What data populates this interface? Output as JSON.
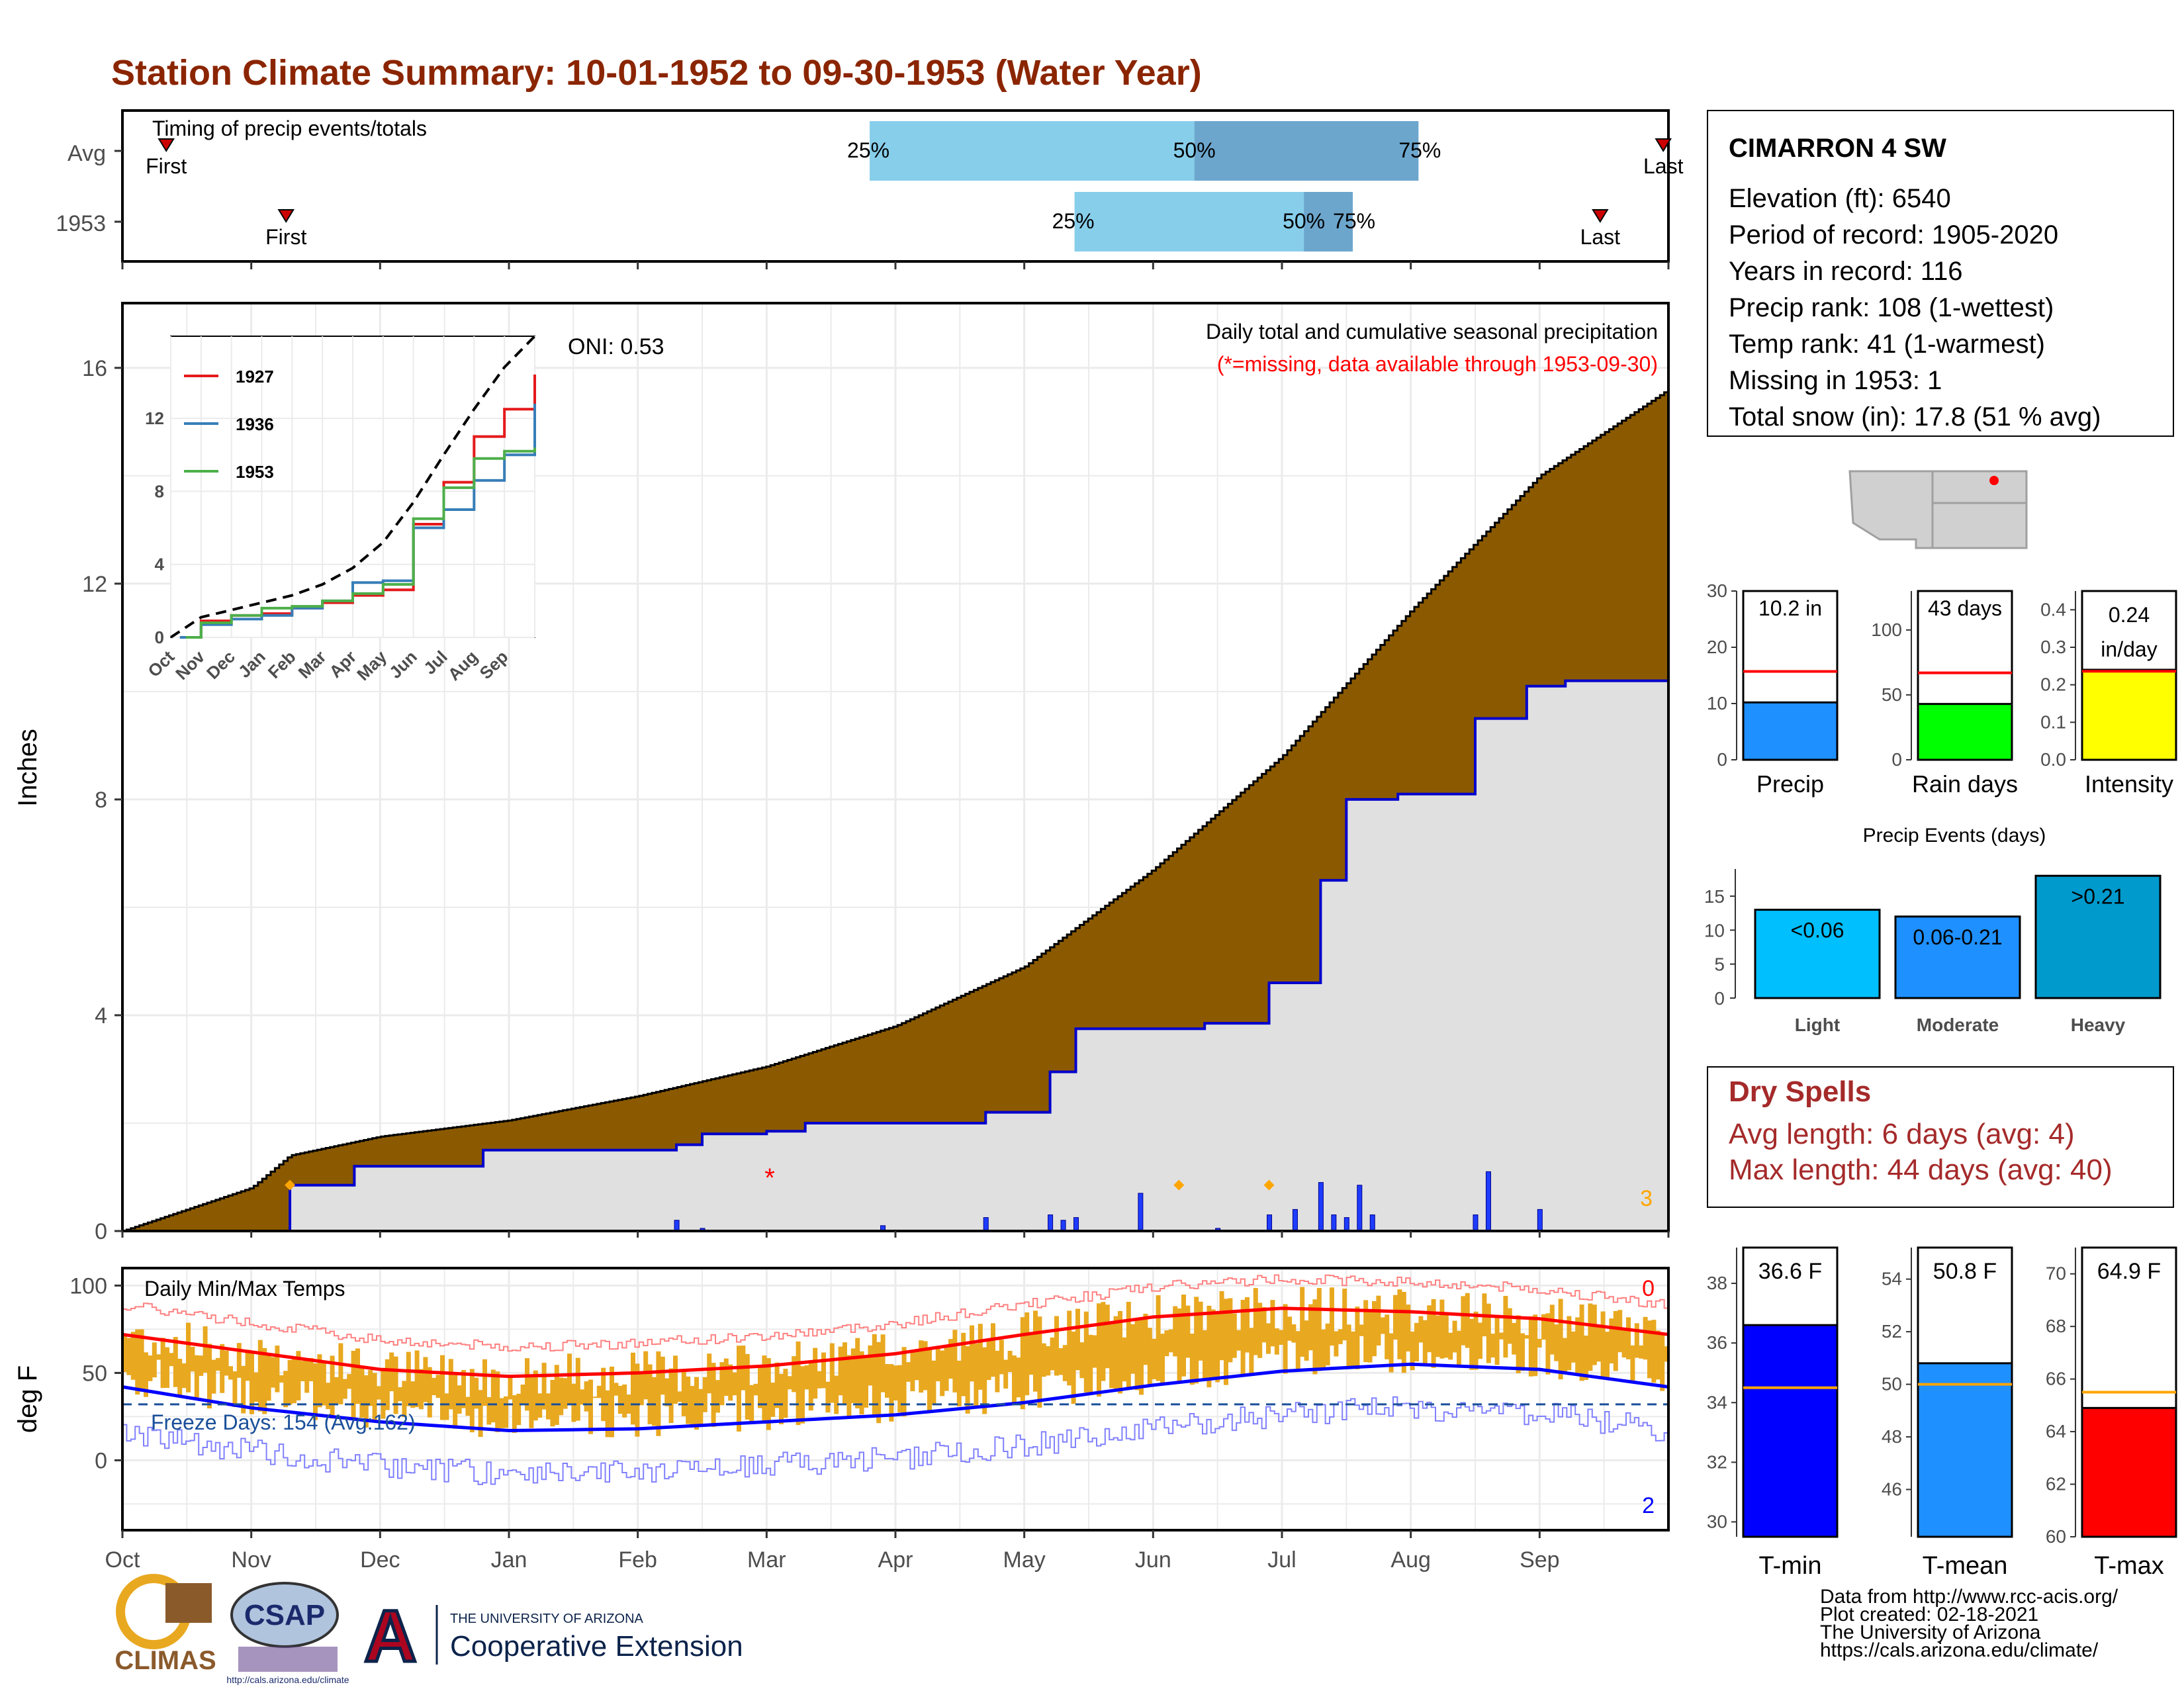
{
  "title": "Station Climate Summary: 10-01-1952 to 09-30-1953 (Water Year)",
  "colors": {
    "title": "#8B2500",
    "cumulative_fill": "#8B5A00",
    "normal_fill": "#E0E0E0",
    "obs_line": "#0000CD",
    "precip_bar": "#1E3CFF",
    "temp_bar": "#E8A820",
    "tmax_line": "#FF0000",
    "tmin_line": "#0000FF",
    "light": "#00BFFF",
    "moderate": "#1E90FF",
    "heavy": "#009ACD"
  },
  "timing": {
    "title": "Timing of precip events/totals",
    "rows": [
      "Avg",
      "1953"
    ],
    "avg": {
      "first_month": 0.34,
      "p25_month": 5.8,
      "p50_month": 8.32,
      "p75_month": 10.06,
      "last_month": 11.96,
      "first_label": "First",
      "last_label": "Last",
      "p25_label": "25%",
      "p50_label": "50%",
      "p75_label": "75%"
    },
    "y1953": {
      "first_month": 1.27,
      "p25_month": 7.39,
      "p50_month": 9.17,
      "p75_month": 9.55,
      "last_month": 11.47,
      "first_label": "First",
      "last_label": "Last",
      "p25_label": "25%",
      "p50_label": "50%",
      "p75_label": "75%"
    }
  },
  "precip_panel": {
    "ylabel": "Inches",
    "y_ticks": [
      "0",
      "4",
      "8",
      "12",
      "16"
    ],
    "heading": "Daily total and cumulative seasonal precipitation",
    "missing_note": "(*=missing, data available through 1953-09-30)",
    "oni": "ONI: 0.53",
    "corner_count": "3"
  },
  "inset": {
    "y_ticks": [
      "0",
      "4",
      "8",
      "12"
    ],
    "x_ticks": [
      "Oct",
      "Nov",
      "Dec",
      "Jan",
      "Feb",
      "Mar",
      "Apr",
      "May",
      "Jun",
      "Jul",
      "Aug",
      "Sep"
    ],
    "legend": [
      "1927",
      "1936",
      "1953"
    ]
  },
  "temp_panel": {
    "ylabel": "deg F",
    "title": "Daily Min/Max Temps",
    "y_ticks": [
      "0",
      "50",
      "100"
    ],
    "freeze": "Freeze Days: 154 (Avg:162)",
    "top_count": "0",
    "bottom_count": "2"
  },
  "x_months": [
    "Oct",
    "Nov",
    "Dec",
    "Jan",
    "Feb",
    "Mar",
    "Apr",
    "May",
    "Jun",
    "Jul",
    "Aug",
    "Sep"
  ],
  "station": {
    "name": "CIMARRON 4 SW",
    "lines": [
      "Elevation (ft): 6540",
      "Period of record: 1905-2020",
      "Years in record: 116",
      "Precip rank: 108 (1-wettest)",
      "Temp rank: 41 (1-warmest)",
      "Missing in 1953: 1",
      "Total snow (in): 17.8 (51 % avg)"
    ]
  },
  "mini_bars": {
    "precip": {
      "label": "Precip",
      "value_label": "10.2 in",
      "y_ticks": [
        "0",
        "10",
        "20",
        "30"
      ],
      "value": 10.2,
      "avg": 15.7,
      "max": 30
    },
    "rain_days": {
      "label": "Rain days",
      "value_label": "43 days",
      "y_ticks": [
        "0",
        "50",
        "100"
      ],
      "value": 43,
      "avg": 67,
      "max": 130
    },
    "intensity": {
      "label": "Intensity",
      "value_label_1": "0.24",
      "value_label_2": "in/day",
      "y_ticks": [
        "0.0",
        "0.1",
        "0.2",
        "0.3",
        "0.4"
      ],
      "value": 0.24,
      "avg": 0.236,
      "max": 0.45
    }
  },
  "events": {
    "title": "Precip Events (days)",
    "y_ticks": [
      "0",
      "5",
      "10",
      "15"
    ],
    "categories": [
      "Light",
      "Moderate",
      "Heavy"
    ],
    "labels": [
      "<0.06",
      "0.06-0.21",
      ">0.21"
    ],
    "values": [
      13,
      12,
      18
    ]
  },
  "dry_spells": {
    "title": "Dry Spells",
    "avg": "Avg length: 6 days (avg: 4)",
    "max": "Max length: 44 days (avg: 40)"
  },
  "temp_bars": {
    "tmin": {
      "label": "T-min",
      "value_label": "36.6 F",
      "y_ticks": [
        "30",
        "32",
        "34",
        "36",
        "38"
      ],
      "value": 36.6,
      "avg": 34.5,
      "min": 29.5,
      "max": 39.2
    },
    "tmean": {
      "label": "T-mean",
      "value_label": "50.8 F",
      "y_ticks": [
        "46",
        "48",
        "50",
        "52",
        "54"
      ],
      "value": 50.8,
      "avg": 50.0,
      "min": 44.2,
      "max": 55.2
    },
    "tmax": {
      "label": "T-max",
      "value_label": "64.9 F",
      "y_ticks": [
        "60",
        "62",
        "64",
        "66",
        "68",
        "70"
      ],
      "value": 64.9,
      "avg": 65.5,
      "min": 60,
      "max": 71
    }
  },
  "credits": [
    "Data from http://www.rcc-acis.org/",
    "Plot created: 02-18-2021",
    "The University of Arizona",
    "https://cals.arizona.edu/climate/"
  ],
  "logos": {
    "climas": "CLIMAS",
    "csap": "CSAP",
    "csap_url": "http://cals.arizona.edu/climate",
    "ua_line1": "THE UNIVERSITY OF ARIZONA",
    "ua_line2": "Cooperative Extension"
  },
  "chart_data": {
    "type": "area",
    "title": "Station Climate Summary: 10-01-1952 to 09-30-1953 (Water Year)",
    "ylabel": "Inches",
    "ylim": [
      0,
      17.2
    ],
    "months": [
      "Oct",
      "Nov",
      "Dec",
      "Jan",
      "Feb",
      "Mar",
      "Apr",
      "May",
      "Jun",
      "Jul",
      "Aug",
      "Sep"
    ],
    "series": [
      {
        "name": "Avg cumulative",
        "x_month": [
          0,
          1,
          1.3,
          2,
          3,
          4,
          5,
          6,
          7,
          8,
          9,
          10,
          11,
          12
        ],
        "values": [
          0,
          0.8,
          1.4,
          1.75,
          2.05,
          2.5,
          3.05,
          3.8,
          4.9,
          6.7,
          8.8,
          11.5,
          14.0,
          15.6
        ]
      },
      {
        "name": "1953 cumulative",
        "x_month": [
          0,
          1.3,
          1.3,
          1.8,
          2.8,
          4.3,
          4.5,
          5.0,
          5.3,
          6.7,
          7.2,
          7.4,
          8.4,
          8.9,
          9.3,
          9.5,
          9.9,
          10.5,
          10.9,
          11.2,
          12
        ],
        "values": [
          0,
          0,
          0.85,
          1.2,
          1.5,
          1.6,
          1.8,
          1.85,
          2.0,
          2.2,
          2.95,
          3.75,
          3.85,
          4.6,
          6.5,
          8.0,
          8.1,
          9.5,
          10.1,
          10.2,
          10.2
        ]
      }
    ],
    "daily_bars": [
      {
        "x": 4.3,
        "v": 0.2
      },
      {
        "x": 4.5,
        "v": 0.05
      },
      {
        "x": 5.9,
        "v": 0.1
      },
      {
        "x": 6.7,
        "v": 0.25
      },
      {
        "x": 7.2,
        "v": 0.3
      },
      {
        "x": 7.3,
        "v": 0.2
      },
      {
        "x": 7.4,
        "v": 0.25
      },
      {
        "x": 7.9,
        "v": 0.7
      },
      {
        "x": 8.5,
        "v": 0.05
      },
      {
        "x": 8.9,
        "v": 0.3
      },
      {
        "x": 9.1,
        "v": 0.4
      },
      {
        "x": 9.3,
        "v": 0.9
      },
      {
        "x": 9.4,
        "v": 0.3
      },
      {
        "x": 9.5,
        "v": 0.25
      },
      {
        "x": 9.6,
        "v": 0.85
      },
      {
        "x": 9.7,
        "v": 0.3
      },
      {
        "x": 10.5,
        "v": 0.3
      },
      {
        "x": 10.6,
        "v": 1.1
      },
      {
        "x": 11.0,
        "v": 0.4
      }
    ],
    "inset_series": [
      {
        "name": "1927",
        "color": "#e41a1c"
      },
      {
        "name": "1936",
        "color": "#377eb8"
      },
      {
        "name": "1953",
        "color": "#4daf4a"
      }
    ],
    "temps": {
      "ylim": [
        -40,
        110
      ],
      "tmax_normal_month": [
        0,
        1,
        2,
        3,
        4,
        5,
        6,
        7,
        8,
        9,
        10,
        11,
        12
      ],
      "tmax_normal": [
        72,
        62,
        52,
        48,
        50,
        54,
        61,
        72,
        82,
        87,
        85,
        81,
        72
      ],
      "tmin_normal_month": [
        0,
        1,
        2,
        3,
        4,
        5,
        6,
        7,
        8,
        9,
        10,
        11,
        12
      ],
      "tmin_normal": [
        42,
        30,
        22,
        17,
        18,
        22,
        26,
        33,
        43,
        51,
        55,
        52,
        42
      ],
      "freeze_line": 32
    }
  }
}
